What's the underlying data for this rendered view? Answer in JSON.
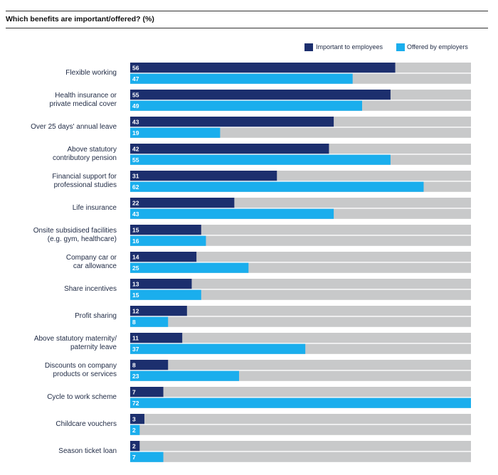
{
  "chart_data": {
    "type": "bar",
    "orientation": "horizontal",
    "title": "Which benefits are important/offered? (%)",
    "xlim": [
      0,
      72
    ],
    "legend_position": "top-right",
    "colors": {
      "important": "#1c2f6e",
      "offered": "#1aaeed",
      "track": "#c8c9ca"
    },
    "series": [
      {
        "name": "Important to employees",
        "values": [
          56,
          55,
          43,
          42,
          31,
          22,
          15,
          14,
          13,
          12,
          11,
          8,
          7,
          3,
          2
        ]
      },
      {
        "name": "Offered by employers",
        "values": [
          47,
          49,
          19,
          55,
          62,
          43,
          16,
          25,
          15,
          8,
          37,
          23,
          72,
          2,
          7
        ]
      }
    ],
    "categories": [
      [
        "Flexible working"
      ],
      [
        "Health insurance or",
        "private medical cover"
      ],
      [
        "Over 25 days' annual leave"
      ],
      [
        "Above statutory",
        "contributory pension"
      ],
      [
        "Financial support for",
        "professional studies"
      ],
      [
        "Life insurance"
      ],
      [
        "Onsite subsidised facilities",
        "(e.g. gym, healthcare)"
      ],
      [
        "Company car or",
        "car allowance"
      ],
      [
        "Share incentives"
      ],
      [
        "Profit sharing"
      ],
      [
        "Above statutory maternity/",
        "paternity leave"
      ],
      [
        "Discounts on company",
        "products or services"
      ],
      [
        "Cycle to work scheme"
      ],
      [
        "Childcare vouchers"
      ],
      [
        "Season ticket loan"
      ]
    ]
  }
}
